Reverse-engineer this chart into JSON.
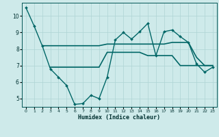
{
  "xlabel": "Humidex (Indice chaleur)",
  "bg_color": "#ceeaea",
  "grid_color": "#aed4d4",
  "line_color": "#006666",
  "xlim": [
    -0.5,
    23.5
  ],
  "ylim": [
    4.5,
    10.8
  ],
  "xtick_labels": [
    "0",
    "1",
    "2",
    "3",
    "4",
    "5",
    "6",
    "7",
    "8",
    "9",
    "10",
    "11",
    "12",
    "13",
    "14",
    "15",
    "16",
    "17",
    "18",
    "19",
    "20",
    "21",
    "22",
    "23"
  ],
  "yticks": [
    5,
    6,
    7,
    8,
    9,
    10
  ],
  "series": {
    "line1_wiggly": {
      "x": [
        0,
        1,
        2,
        3,
        4,
        5,
        6,
        7,
        8,
        9,
        10,
        11,
        12,
        13,
        14,
        15,
        16,
        17,
        18,
        19,
        20,
        21,
        22,
        23
      ],
      "y": [
        10.5,
        9.4,
        8.2,
        6.8,
        6.3,
        5.8,
        4.65,
        4.7,
        5.2,
        5.0,
        6.3,
        8.55,
        9.0,
        8.6,
        9.05,
        9.55,
        7.6,
        9.05,
        9.15,
        8.75,
        8.4,
        7.1,
        6.6,
        6.9
      ],
      "linewidth": 1.0,
      "markersize": 2.0
    },
    "line2_upper": {
      "x": [
        2,
        3,
        4,
        5,
        6,
        7,
        8,
        9,
        10,
        11,
        12,
        13,
        14,
        15,
        16,
        17,
        18,
        19,
        20,
        21,
        22,
        23
      ],
      "y": [
        8.2,
        8.2,
        8.2,
        8.2,
        8.2,
        8.2,
        8.2,
        8.2,
        8.3,
        8.3,
        8.3,
        8.3,
        8.3,
        8.3,
        8.3,
        8.3,
        8.4,
        8.4,
        8.4,
        7.5,
        7.0,
        7.0
      ],
      "linewidth": 1.2
    },
    "line3_lower": {
      "x": [
        3,
        4,
        5,
        6,
        7,
        8,
        9,
        10,
        11,
        12,
        13,
        14,
        15,
        16,
        17,
        18,
        19,
        20,
        21,
        22,
        23
      ],
      "y": [
        6.9,
        6.9,
        6.9,
        6.9,
        6.9,
        6.9,
        6.9,
        7.8,
        7.8,
        7.8,
        7.8,
        7.8,
        7.6,
        7.6,
        7.6,
        7.6,
        7.0,
        7.0,
        7.0,
        7.0,
        7.0
      ],
      "linewidth": 1.2
    }
  }
}
